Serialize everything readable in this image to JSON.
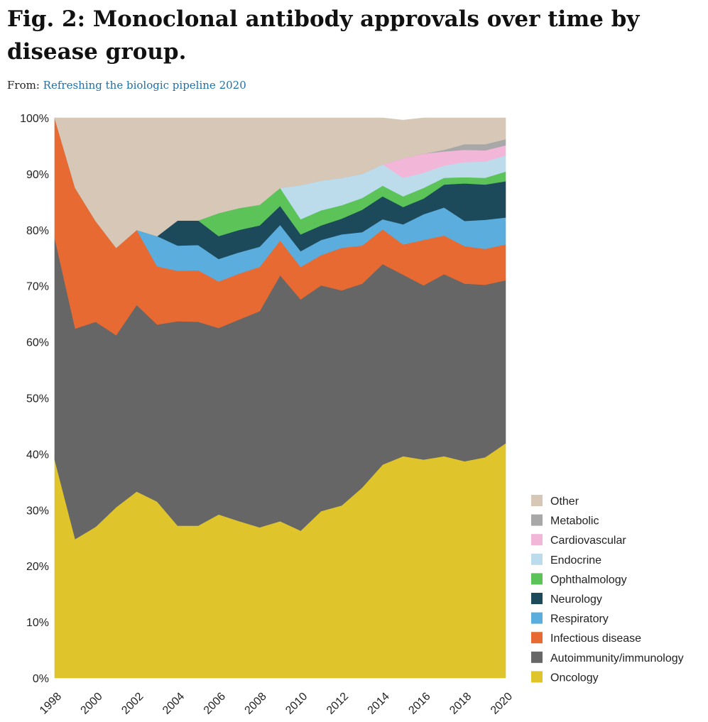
{
  "figure": {
    "title": "Fig. 2: Monoclonal antibody approvals over time by disease group.",
    "from_label": "From:",
    "source_link": "Refreshing the biologic pipeline 2020"
  },
  "chart_data": {
    "type": "area",
    "stacked": true,
    "title": "Fig. 2: Monoclonal antibody approvals over time by disease group.",
    "xlabel": "",
    "ylabel": "",
    "ylim": [
      0,
      100
    ],
    "xlim": [
      1998,
      2020
    ],
    "y_ticks": [
      "0%",
      "10%",
      "20%",
      "30%",
      "40%",
      "50%",
      "60%",
      "70%",
      "80%",
      "90%",
      "100%"
    ],
    "x_ticks": [
      "1998",
      "2000",
      "2002",
      "2004",
      "2006",
      "2008",
      "2010",
      "2012",
      "2014",
      "2016",
      "2018",
      "2020"
    ],
    "legend_position": "right",
    "x": [
      1998,
      1999,
      2000,
      2001,
      2002,
      2003,
      2004,
      2005,
      2006,
      2007,
      2008,
      2009,
      2010,
      2011,
      2012,
      2013,
      2014,
      2015,
      2016,
      2017,
      2018,
      2019,
      2020
    ],
    "series": [
      {
        "name": "Oncology",
        "color": "#dfc42c",
        "values": [
          39.0,
          24.8,
          27.0,
          30.5,
          33.3,
          31.5,
          27.2,
          27.2,
          29.2,
          28.0,
          26.9,
          28.0,
          26.3,
          29.8,
          30.8,
          34.0,
          38.1,
          39.6,
          39.0,
          39.6,
          38.7,
          39.4,
          41.9
        ]
      },
      {
        "name": "Autoimmunity/immunology",
        "color": "#666666",
        "values": [
          39.6,
          37.6,
          36.6,
          30.7,
          33.3,
          31.6,
          36.5,
          36.4,
          33.3,
          36.0,
          38.6,
          43.9,
          41.3,
          40.3,
          38.4,
          36.4,
          35.8,
          32.4,
          31.1,
          32.5,
          31.7,
          30.8,
          29.1
        ]
      },
      {
        "name": "Infectious disease",
        "color": "#e86a33",
        "values": [
          21.4,
          25.1,
          18.0,
          15.6,
          13.4,
          10.4,
          9.0,
          9.2,
          8.3,
          8.2,
          7.9,
          6.2,
          5.8,
          5.4,
          7.6,
          6.8,
          6.2,
          5.4,
          8.1,
          6.9,
          6.7,
          6.4,
          6.4
        ]
      },
      {
        "name": "Respiratory",
        "color": "#5aaddc",
        "values": [
          0,
          0,
          0,
          0,
          0,
          5.4,
          4.5,
          4.5,
          4.0,
          3.8,
          3.6,
          2.8,
          2.8,
          2.7,
          2.4,
          2.4,
          1.8,
          3.6,
          4.6,
          5.0,
          4.5,
          5.2,
          4.8
        ]
      },
      {
        "name": "Neurology",
        "color": "#1c4a5b",
        "values": [
          0,
          0,
          0,
          0,
          0,
          0,
          4.5,
          4.4,
          4.1,
          4.0,
          3.8,
          3.4,
          3.0,
          2.6,
          2.8,
          4.0,
          4.1,
          3.1,
          2.8,
          4.1,
          6.7,
          6.3,
          6.5
        ]
      },
      {
        "name": "Ophthalmology",
        "color": "#5bc358",
        "values": [
          0,
          0,
          0,
          0,
          0,
          0,
          0,
          0,
          4.1,
          3.9,
          3.7,
          3.2,
          2.7,
          2.7,
          2.4,
          2.1,
          1.9,
          1.9,
          1.9,
          1.2,
          1.1,
          1.2,
          1.7
        ]
      },
      {
        "name": "Endocrine",
        "color": "#bcdcec",
        "values": [
          0,
          0,
          0,
          0,
          0,
          0,
          0,
          0,
          0,
          0,
          0,
          0,
          6.1,
          5.3,
          4.9,
          4.3,
          3.8,
          3.3,
          2.7,
          2.2,
          2.7,
          2.9,
          2.9
        ]
      },
      {
        "name": "Cardiovascular",
        "color": "#f2b6d8",
        "values": [
          0,
          0,
          0,
          0,
          0,
          0,
          0,
          0,
          0,
          0,
          0,
          0,
          0,
          0,
          0,
          0,
          0,
          3.5,
          3.4,
          2.5,
          2.2,
          2.0,
          1.8
        ]
      },
      {
        "name": "Metabolic",
        "color": "#a8a8a8",
        "values": [
          0,
          0,
          0,
          0,
          0,
          0,
          0,
          0,
          0,
          0,
          0,
          0,
          0,
          0,
          0,
          0,
          0,
          0,
          0,
          0.3,
          1.0,
          1.1,
          1.1
        ]
      },
      {
        "name": "Other",
        "color": "#d6c7b6",
        "values": [
          0,
          12.5,
          18.4,
          23.2,
          20.0,
          21.1,
          18.3,
          18.3,
          17.0,
          16.1,
          15.5,
          12.5,
          12.0,
          11.2,
          10.7,
          10.0,
          8.3,
          6.8,
          6.4,
          5.7,
          4.7,
          4.7,
          3.8
        ]
      }
    ]
  }
}
